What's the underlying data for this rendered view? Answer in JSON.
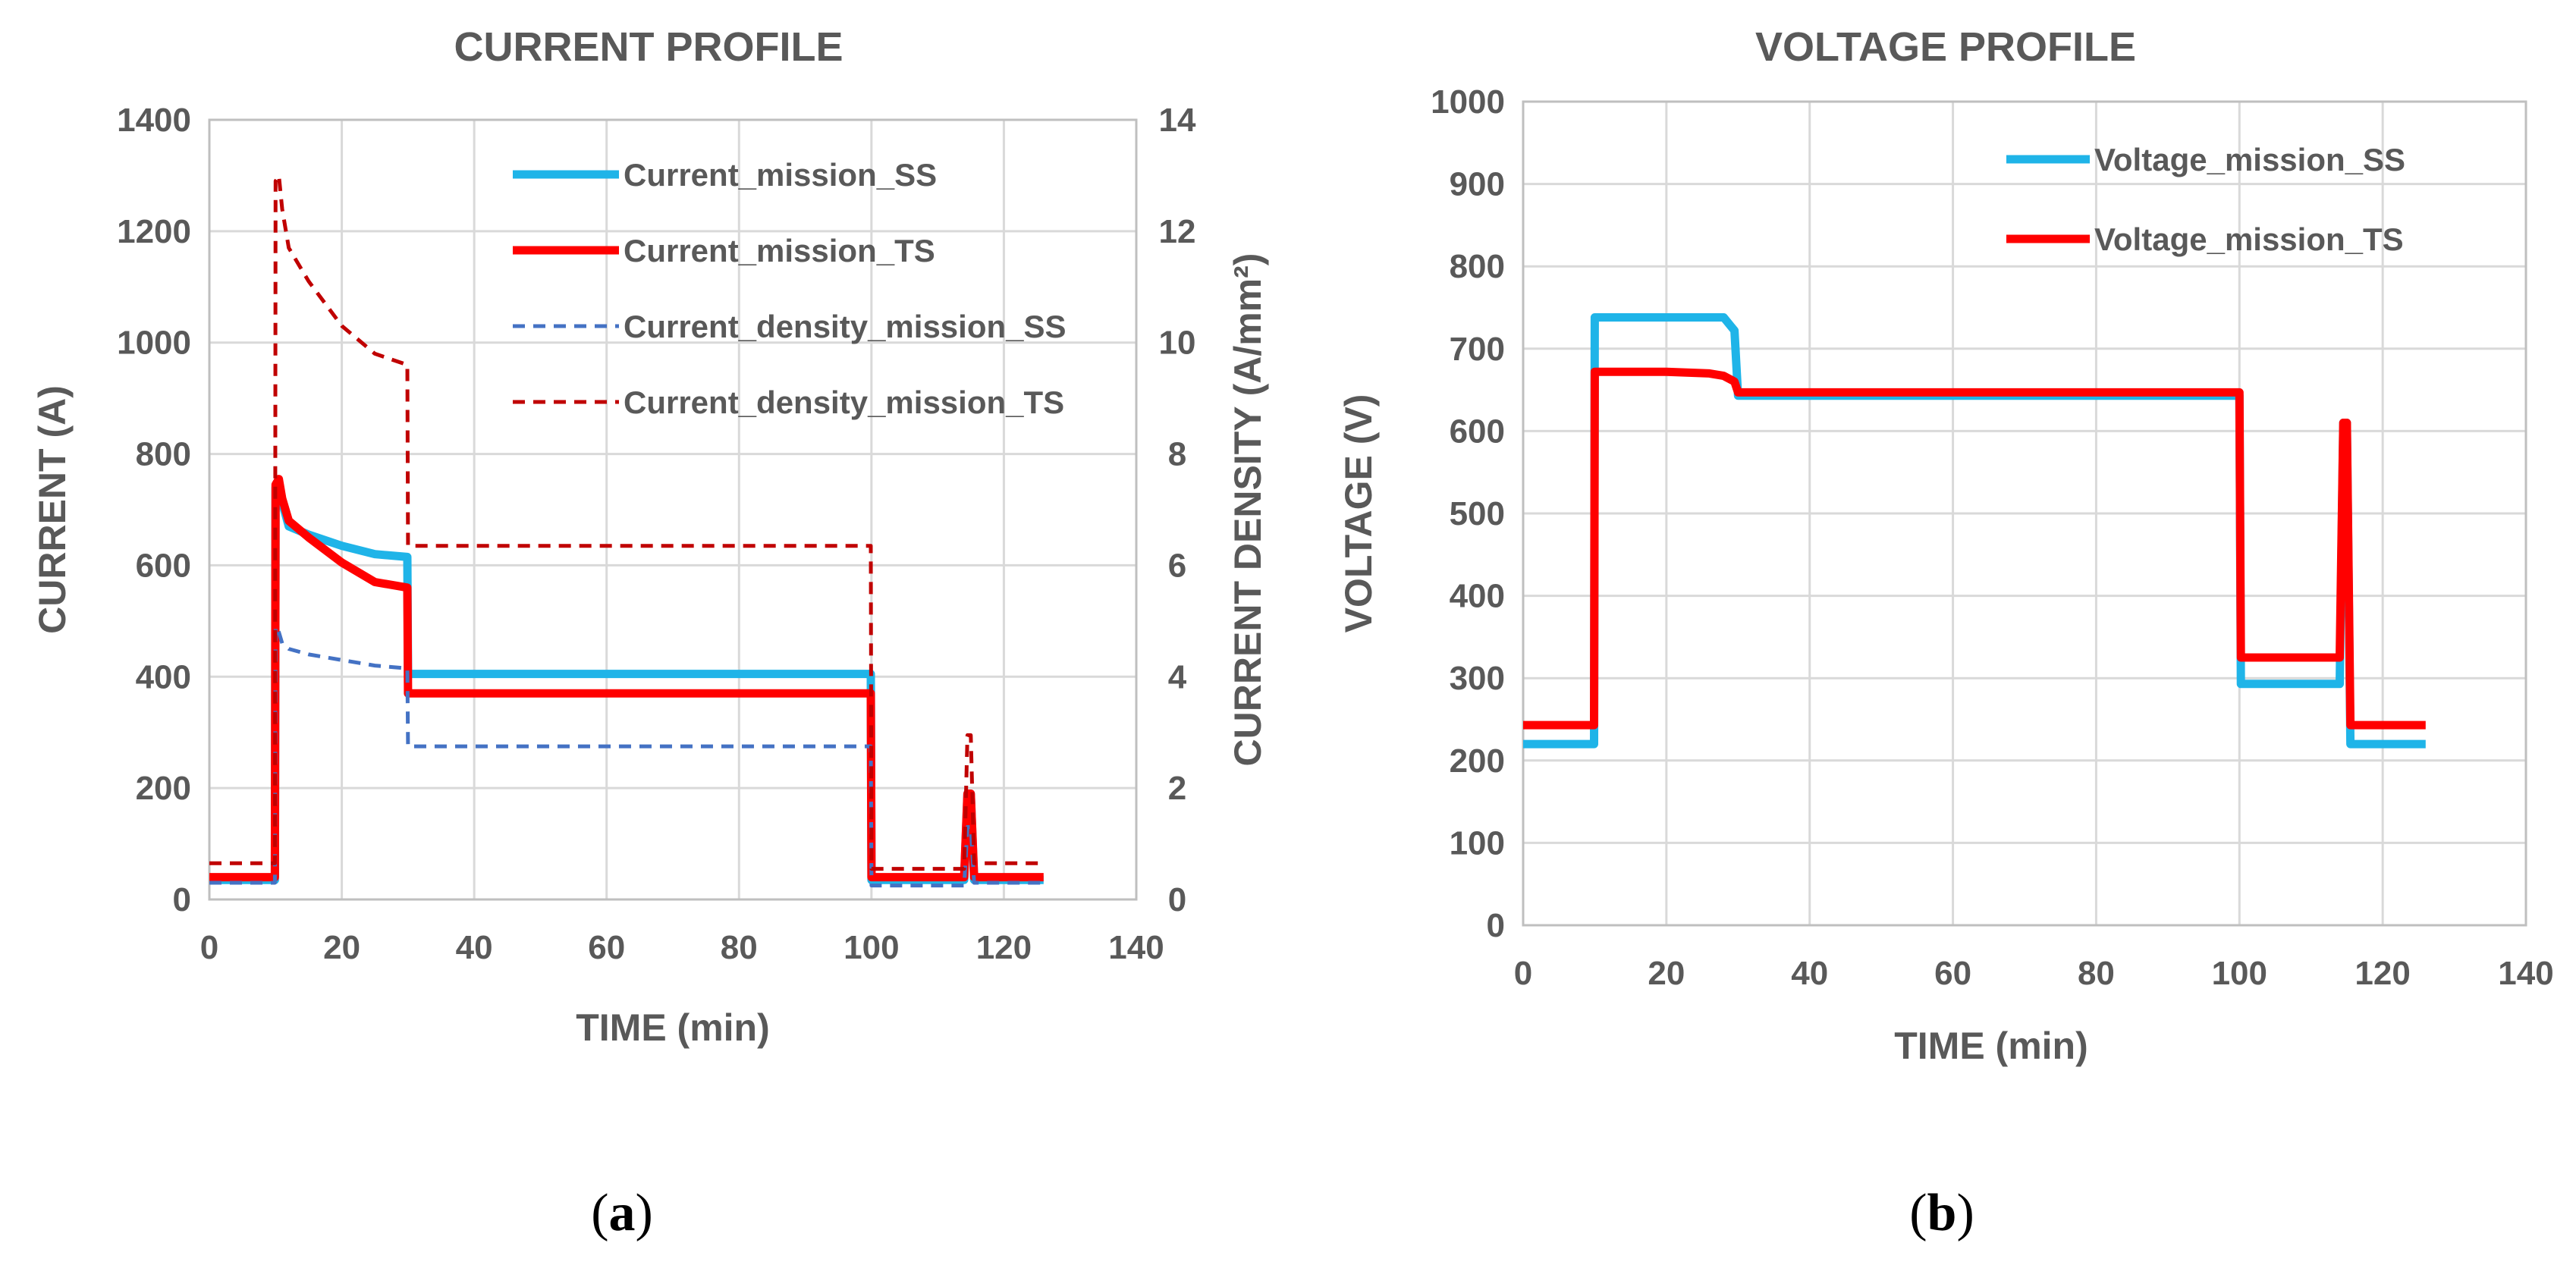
{
  "chart_data": [
    {
      "type": "line",
      "title": "CURRENT PROFILE",
      "xlabel": "TIME (min)",
      "ylabel": "CURRENT (A)",
      "y2label": "CURRENT DENSITY (A/mm²)",
      "xlim": [
        0,
        140
      ],
      "ylim": [
        0,
        1400
      ],
      "y2lim": [
        0,
        14
      ],
      "xticks": [
        "0",
        "20",
        "40",
        "60",
        "80",
        "100",
        "120",
        "140"
      ],
      "yticks": [
        "0",
        "200",
        "400",
        "600",
        "800",
        "1000",
        "1200",
        "1400"
      ],
      "y2ticks": [
        "0",
        "2",
        "4",
        "6",
        "8",
        "10",
        "12",
        "14"
      ],
      "grid": true,
      "legend": "top-right",
      "caption_label": "a",
      "series": [
        {
          "name": "Current_mission_SS",
          "axis": "left",
          "color": "#1fb4e8",
          "dash": "solid",
          "x": [
            0,
            9.9,
            10,
            10.5,
            12,
            15,
            20,
            25,
            29.9,
            30,
            99.9,
            100,
            114,
            114.5,
            115,
            115.5,
            126
          ],
          "y": [
            35,
            35,
            740,
            735,
            670,
            655,
            635,
            620,
            615,
            405,
            405,
            35,
            35,
            190,
            190,
            35,
            35
          ]
        },
        {
          "name": "Current_mission_TS",
          "axis": "left",
          "color": "#ff0000",
          "dash": "solid",
          "x": [
            0,
            9.9,
            10,
            10.5,
            11,
            12,
            15,
            20,
            25,
            29.9,
            30,
            99.9,
            100,
            114,
            114.5,
            115,
            115.5,
            126
          ],
          "y": [
            40,
            40,
            745,
            755,
            720,
            680,
            650,
            605,
            570,
            560,
            370,
            370,
            40,
            40,
            190,
            190,
            40,
            40
          ]
        },
        {
          "name": "Current_density_mission_SS",
          "axis": "right",
          "color": "#4472c4",
          "dash": "dashed",
          "x": [
            0,
            9.9,
            10,
            10.5,
            11,
            12,
            15,
            20,
            25,
            29.9,
            30,
            99.9,
            100,
            114,
            114.5,
            115,
            115.5,
            126
          ],
          "y": [
            0.3,
            0.3,
            4.9,
            4.8,
            4.6,
            4.5,
            4.4,
            4.3,
            4.2,
            4.15,
            2.75,
            2.75,
            0.25,
            0.25,
            1.3,
            1.3,
            0.3,
            0.3
          ]
        },
        {
          "name": "Current_density_mission_TS",
          "axis": "right",
          "color": "#c00000",
          "dash": "dashed",
          "x": [
            0,
            9.9,
            10,
            10.5,
            11,
            12,
            15,
            20,
            25,
            29.9,
            30,
            99.9,
            100,
            114,
            114.5,
            115,
            115.5,
            126
          ],
          "y": [
            0.65,
            0.65,
            12.9,
            13.0,
            12.4,
            11.7,
            11.1,
            10.3,
            9.8,
            9.6,
            6.35,
            6.35,
            0.55,
            0.55,
            2.95,
            2.95,
            0.65,
            0.65
          ]
        }
      ]
    },
    {
      "type": "line",
      "title": "VOLTAGE PROFILE",
      "xlabel": "TIME (min)",
      "ylabel": "VOLTAGE (V)",
      "xlim": [
        0,
        140
      ],
      "ylim": [
        0,
        1000
      ],
      "xticks": [
        "0",
        "20",
        "40",
        "60",
        "80",
        "100",
        "120",
        "140"
      ],
      "yticks": [
        "0",
        "100",
        "200",
        "300",
        "400",
        "500",
        "600",
        "700",
        "800",
        "900",
        "1000"
      ],
      "grid": true,
      "legend": "top-right",
      "caption_label": "b",
      "series": [
        {
          "name": "Voltage_mission_SS",
          "color": "#1fb4e8",
          "dash": "solid",
          "x": [
            0,
            9.9,
            10,
            28,
            29.5,
            30,
            100,
            100.2,
            114,
            114.5,
            115,
            115.5,
            126
          ],
          "y": [
            220,
            220,
            738,
            738,
            722,
            643,
            643,
            293,
            293,
            610,
            610,
            220,
            220
          ]
        },
        {
          "name": "Voltage_mission_TS",
          "color": "#ff0000",
          "dash": "solid",
          "x": [
            0,
            9.9,
            10,
            20,
            26,
            28,
            29.5,
            30,
            100,
            100.2,
            114,
            114.5,
            115,
            115.5,
            126
          ],
          "y": [
            243,
            243,
            672,
            672,
            670,
            667,
            660,
            647,
            647,
            325,
            325,
            610,
            610,
            243,
            243
          ]
        }
      ]
    }
  ]
}
